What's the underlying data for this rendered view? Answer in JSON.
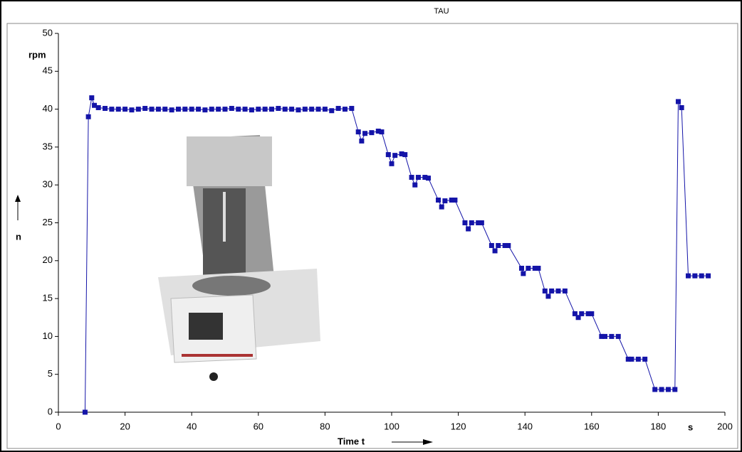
{
  "chart_data": {
    "type": "line",
    "title": "TAU",
    "x_label": "Time t",
    "x_unit": "s",
    "y_label": "n",
    "y_unit": "rpm",
    "xlim": [
      0,
      200
    ],
    "xticks": [
      0,
      20,
      40,
      60,
      80,
      100,
      120,
      140,
      160,
      180,
      200
    ],
    "ylim": [
      0,
      50
    ],
    "yticks": [
      0,
      5,
      10,
      15,
      20,
      25,
      30,
      35,
      40,
      45,
      50
    ],
    "grid": false,
    "series": [
      {
        "color": "#1414a8",
        "x": [
          8,
          9,
          10,
          10.8,
          12,
          14,
          16,
          18,
          20,
          22,
          24,
          26,
          28,
          30,
          32,
          34,
          36,
          38,
          40,
          42,
          44,
          46,
          48,
          50,
          52,
          54,
          56,
          58,
          60,
          62,
          64,
          66,
          68,
          70,
          72,
          74,
          76,
          78,
          80,
          82,
          84,
          86,
          88,
          90,
          91,
          92,
          94,
          96,
          97,
          99,
          100,
          101,
          103,
          104,
          106,
          107,
          108,
          110,
          111,
          114,
          115,
          116,
          118,
          119,
          122,
          123,
          124,
          126,
          127,
          130,
          131,
          132,
          134,
          135,
          139,
          139.5,
          141,
          143,
          144,
          146,
          147,
          148,
          150,
          152,
          155,
          156,
          157,
          159,
          160,
          163,
          164,
          166,
          168,
          171,
          172,
          174,
          176,
          179,
          181,
          183,
          185,
          186,
          187,
          189,
          191,
          193,
          195
        ],
        "values": [
          0,
          39,
          41.5,
          40.5,
          40.2,
          40.1,
          40,
          40,
          40,
          39.9,
          40,
          40.1,
          40,
          40,
          40,
          39.9,
          40,
          40,
          40,
          40,
          39.9,
          40,
          40,
          40,
          40.1,
          40,
          40,
          39.9,
          40,
          40,
          40,
          40.1,
          40,
          40,
          39.9,
          40,
          40,
          40,
          40,
          39.8,
          40.1,
          40,
          40.1,
          37,
          35.8,
          36.8,
          36.9,
          37.1,
          37,
          34,
          32.8,
          33.9,
          34.1,
          34,
          31,
          30,
          31,
          31,
          30.9,
          28,
          27.1,
          27.9,
          28,
          28,
          25,
          24.2,
          25,
          25,
          25,
          22,
          21.3,
          22,
          22,
          22,
          19,
          18.3,
          19,
          19,
          19,
          16,
          15.3,
          16,
          16,
          16,
          13,
          12.5,
          13,
          13,
          13,
          10,
          10,
          10,
          10,
          7,
          7,
          7,
          7,
          3,
          3,
          3,
          3,
          41,
          40.2,
          18,
          18,
          18,
          18
        ]
      }
    ]
  }
}
